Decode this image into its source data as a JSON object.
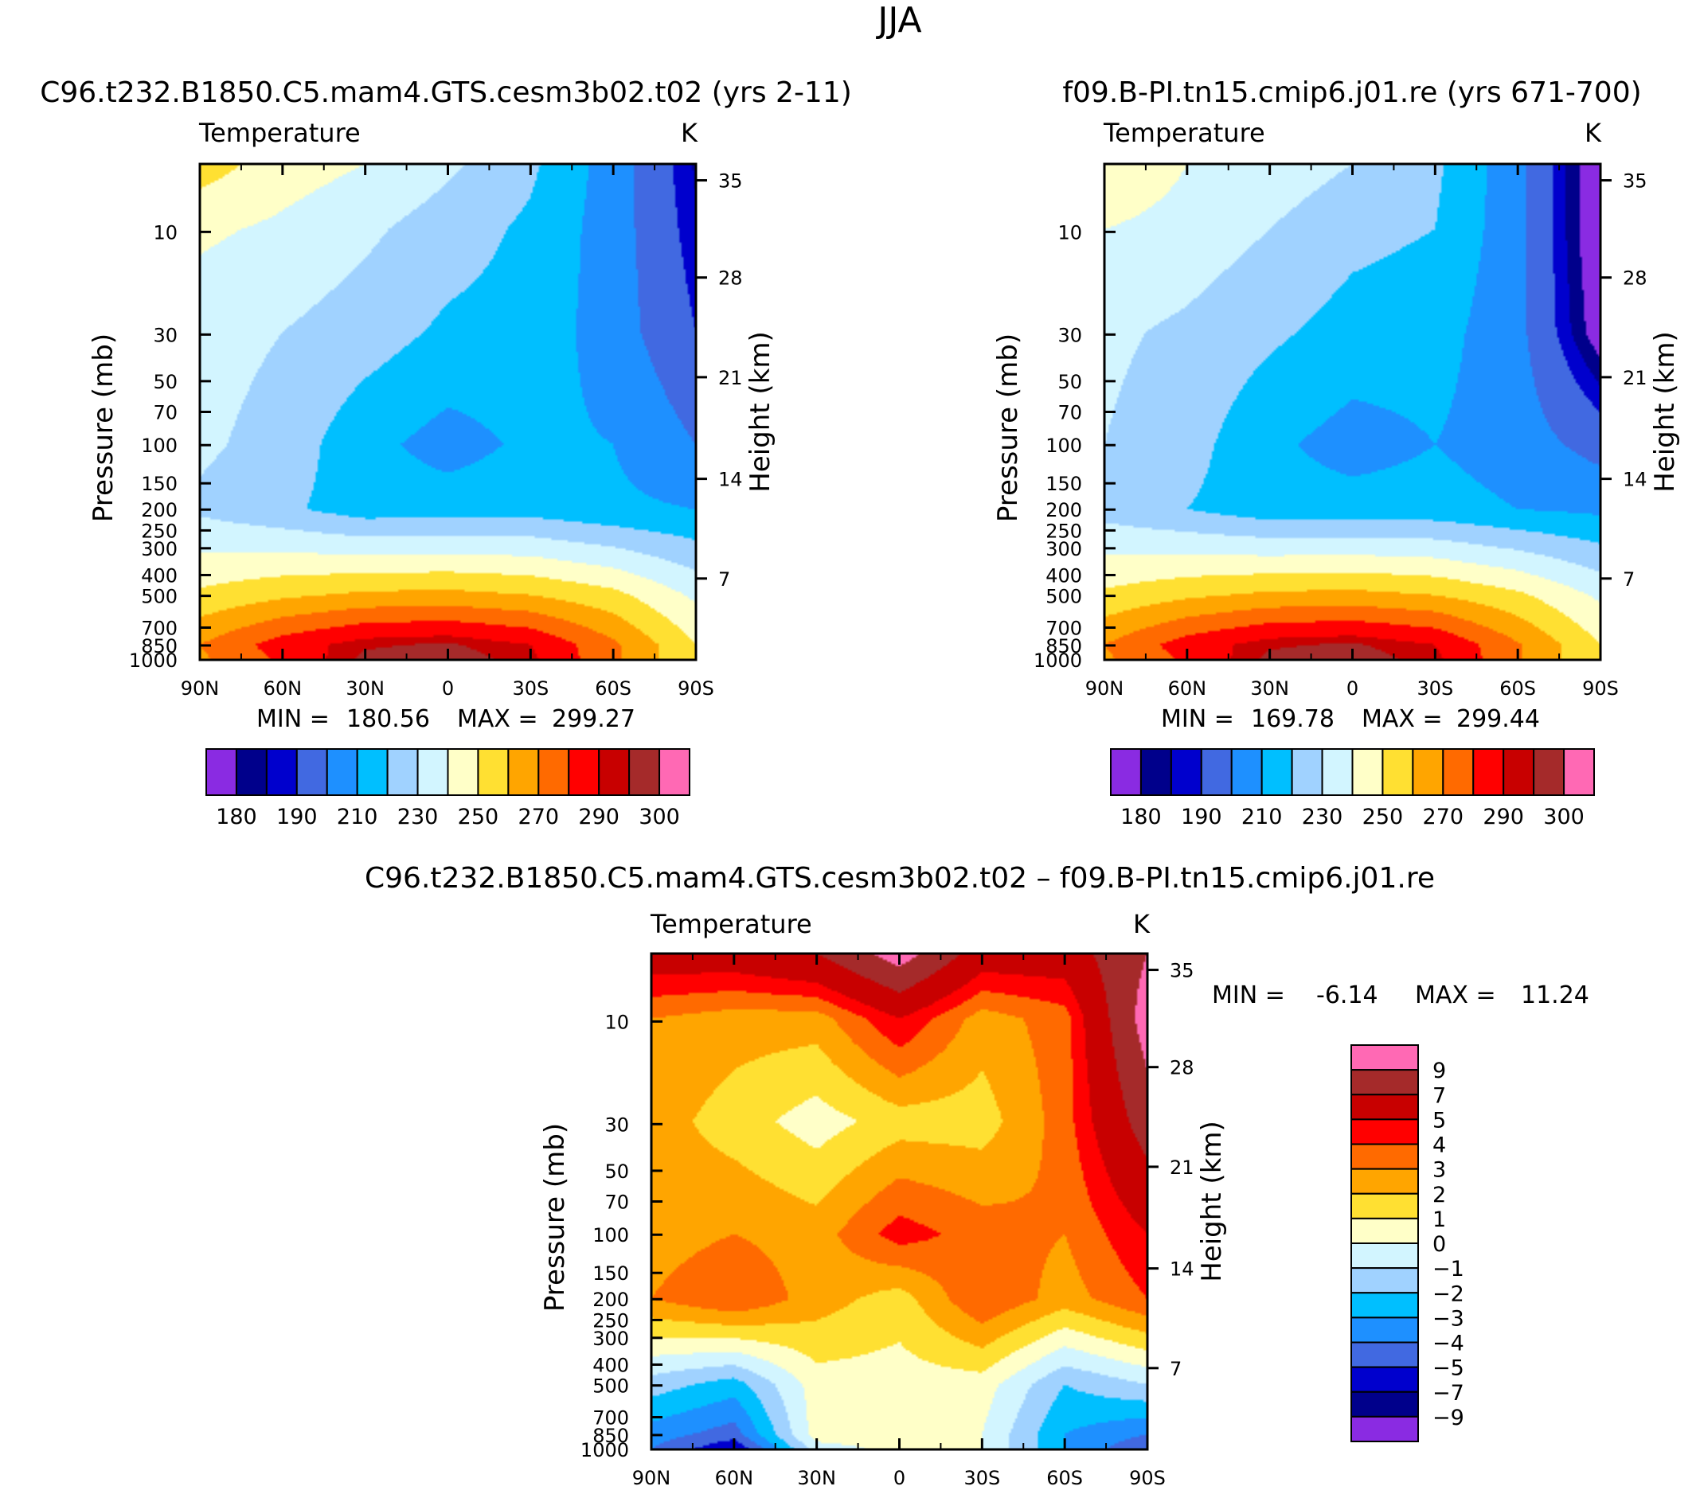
{
  "figure": {
    "season": "JJA",
    "colors": {
      "abs_levels": [
        "#8a2be2",
        "#00008b",
        "#0000cd",
        "#4169e1",
        "#1e90ff",
        "#00bfff",
        "#a0d2ff",
        "#d2f5ff",
        "#ffffc8",
        "#ffe032",
        "#ffa500",
        "#ff6a00",
        "#ff0000",
        "#c80000",
        "#a52a2a",
        "#ff69b4"
      ],
      "diff_levels": [
        "#8a2be2",
        "#00008b",
        "#0000cd",
        "#4169e1",
        "#1e90ff",
        "#00bfff",
        "#a0d2ff",
        "#d2f5ff",
        "#ffffc8",
        "#ffe032",
        "#ffa500",
        "#ff6a00",
        "#ff0000",
        "#c80000",
        "#a52a2a",
        "#ff69b4"
      ]
    }
  },
  "chart_data": [
    {
      "type": "heatmap",
      "title": "C96.t232.B1850.C5.mam4.GTS.cesm3b02.t02 (yrs 2-11)",
      "subtitle": "Temperature",
      "units": "K",
      "xlabel": "",
      "ylabel": "Pressure (mb)",
      "y2label": "Height (km)",
      "x_ticks": [
        "90N",
        "60N",
        "30N",
        "0",
        "30S",
        "60S",
        "90S"
      ],
      "y_ticks": [
        "10",
        "30",
        "50",
        "70",
        "100",
        "150",
        "200",
        "250",
        "300",
        "400",
        "500",
        "700",
        "850",
        "1000"
      ],
      "y2_ticks": [
        "35",
        "28",
        "21",
        "14",
        "7"
      ],
      "ylim": [
        1000,
        5
      ],
      "y_scale": "log",
      "min_label": "MIN =",
      "min_value": "180.56",
      "max_label": "MAX =",
      "max_value": "299.27",
      "colorbar_labels": [
        "180",
        "190",
        "210",
        "230",
        "250",
        "270",
        "290",
        "300"
      ],
      "data": {
        "latitudes": [
          90,
          60,
          30,
          0,
          -30,
          -60,
          -90
        ],
        "pressure_levels": [
          5,
          10,
          30,
          100,
          200,
          500,
          850,
          1000
        ],
        "temperature_K": [
          [
            255,
            245,
            240,
            232,
            222,
            205,
            184
          ],
          [
            242,
            238,
            232,
            225,
            218,
            205,
            186
          ],
          [
            234,
            230,
            225,
            218,
            216,
            205,
            190
          ],
          [
            232,
            226,
            213,
            206,
            212,
            210,
            200
          ],
          [
            228,
            222,
            215,
            215,
            216,
            212,
            210
          ],
          [
            252,
            258,
            262,
            263,
            260,
            253,
            238
          ],
          [
            270,
            285,
            294,
            296,
            290,
            272,
            250
          ],
          [
            268,
            282,
            297,
            299,
            292,
            272,
            250
          ]
        ]
      }
    },
    {
      "type": "heatmap",
      "title": "f09.B-PI.tn15.cmip6.j01.re (yrs 671-700)",
      "subtitle": "Temperature",
      "units": "K",
      "xlabel": "",
      "ylabel": "Pressure (mb)",
      "y2label": "Height (km)",
      "x_ticks": [
        "90N",
        "60N",
        "30N",
        "0",
        "30S",
        "60S",
        "90S"
      ],
      "y_ticks": [
        "10",
        "30",
        "50",
        "70",
        "100",
        "150",
        "200",
        "250",
        "300",
        "400",
        "500",
        "700",
        "850",
        "1000"
      ],
      "y2_ticks": [
        "35",
        "28",
        "21",
        "14",
        "7"
      ],
      "ylim": [
        1000,
        5
      ],
      "y_scale": "log",
      "min_label": "MIN =",
      "min_value": "169.78",
      "max_label": "MAX =",
      "max_value": "299.44",
      "colorbar_labels": [
        "180",
        "190",
        "210",
        "230",
        "250",
        "270",
        "290",
        "300"
      ],
      "data": {
        "latitudes": [
          90,
          60,
          30,
          0,
          -30,
          -60,
          -90
        ],
        "pressure_levels": [
          5,
          10,
          30,
          100,
          200,
          500,
          850,
          1000
        ],
        "temperature_K": [
          [
            250,
            240,
            236,
            230,
            222,
            203,
            172
          ],
          [
            240,
            236,
            230,
            223,
            220,
            203,
            172
          ],
          [
            232,
            228,
            222,
            216,
            214,
            203,
            175
          ],
          [
            230,
            224,
            212,
            206,
            210,
            205,
            196
          ],
          [
            226,
            220,
            214,
            214,
            214,
            210,
            208
          ],
          [
            252,
            258,
            262,
            263,
            260,
            252,
            238
          ],
          [
            270,
            285,
            294,
            296,
            290,
            271,
            250
          ],
          [
            268,
            282,
            297,
            299,
            292,
            271,
            250
          ]
        ]
      }
    },
    {
      "type": "heatmap",
      "title": "C96.t232.B1850.C5.mam4.GTS.cesm3b02.t02 – f09.B-PI.tn15.cmip6.j01.re",
      "subtitle": "Temperature",
      "units": "K",
      "xlabel": "",
      "ylabel": "Pressure (mb)",
      "y2label": "Height (km)",
      "x_ticks": [
        "90N",
        "60N",
        "30N",
        "0",
        "30S",
        "60S",
        "90S"
      ],
      "y_ticks": [
        "10",
        "30",
        "50",
        "70",
        "100",
        "150",
        "200",
        "250",
        "300",
        "400",
        "500",
        "700",
        "850",
        "1000"
      ],
      "y2_ticks": [
        "35",
        "28",
        "21",
        "14",
        "7"
      ],
      "ylim": [
        1000,
        5
      ],
      "y_scale": "log",
      "min_label": "MIN =",
      "min_value": "-6.14",
      "max_label": "MAX =",
      "max_value": "11.24",
      "colorbar_labels": [
        "9",
        "7",
        "5",
        "4",
        "3",
        "2",
        "1",
        "0",
        "−1",
        "−2",
        "−3",
        "−4",
        "−5",
        "−7",
        "−9"
      ],
      "data": {
        "latitudes": [
          90,
          60,
          30,
          0,
          -30,
          -60,
          -90
        ],
        "pressure_levels": [
          5,
          10,
          30,
          100,
          200,
          500,
          850,
          1000
        ],
        "temperature_diff_K": [
          [
            6,
            6,
            7,
            10,
            6,
            6,
            9
          ],
          [
            3,
            2.5,
            2.5,
            5,
            2.5,
            3.5,
            10
          ],
          [
            2.5,
            1.5,
            0.5,
            1.5,
            1.5,
            3.5,
            8
          ],
          [
            2.5,
            3,
            2.5,
            4.5,
            3.5,
            3,
            5
          ],
          [
            3,
            4,
            2.5,
            1.5,
            4,
            2.5,
            4
          ],
          [
            -1.5,
            -2.5,
            0.5,
            0.5,
            0.5,
            -2,
            -1
          ],
          [
            -3.5,
            -4.5,
            0.5,
            0.5,
            0,
            -3,
            -4
          ],
          [
            -4,
            -6,
            -0.5,
            0.3,
            0,
            -3,
            -5
          ]
        ]
      }
    }
  ]
}
